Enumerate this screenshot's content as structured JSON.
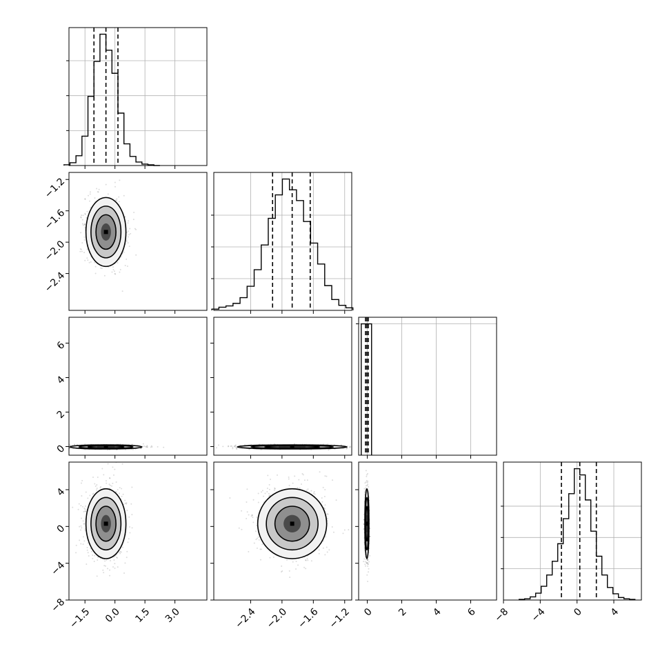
{
  "chart_data": {
    "type": "corner",
    "title": "",
    "n_params": 4,
    "params": [
      {
        "label": "",
        "range": [
          -2.3,
          4.6
        ],
        "ticks": [
          -1.5,
          0.0,
          1.5,
          3.0
        ],
        "tick_labels": [
          "−1.5",
          "0.0",
          "1.5",
          "3.0"
        ],
        "quantiles": [
          -1.05,
          -0.45,
          0.15
        ],
        "hist_x": [
          -2.4,
          -2.1,
          -1.8,
          -1.5,
          -1.2,
          -0.9,
          -0.6,
          -0.3,
          0.0,
          0.3,
          0.6,
          0.9,
          1.2,
          1.5,
          1.8,
          2.1
        ],
        "hist_counts": [
          1,
          4,
          14,
          42,
          99,
          149,
          188,
          165,
          132,
          75,
          31,
          13,
          5,
          2,
          1,
          0
        ]
      },
      {
        "label": "",
        "range": [
          -2.87,
          -1.11
        ],
        "ticks": [
          -2.4,
          -2.0,
          -1.6,
          -1.2
        ],
        "tick_labels": [
          "−2.4",
          "−2.0",
          "−1.6",
          "−1.2"
        ],
        "quantiles": [
          -2.12,
          -1.87,
          -1.64
        ],
        "hist_x": [
          -2.85,
          -2.76,
          -2.67,
          -2.58,
          -2.49,
          -2.4,
          -2.31,
          -2.22,
          -2.13,
          -2.04,
          -1.95,
          -1.86,
          -1.77,
          -1.68,
          -1.59,
          -1.5,
          -1.41,
          -1.32,
          -1.23,
          -1.14
        ],
        "hist_counts": [
          2,
          5,
          7,
          11,
          20,
          38,
          64,
          103,
          145,
          182,
          207,
          190,
          173,
          140,
          106,
          73,
          39,
          17,
          8,
          4
        ]
      },
      {
        "label": "",
        "range": [
          -0.5,
          7.5
        ],
        "ticks": [
          0,
          2,
          4,
          6
        ],
        "tick_labels": [
          "0",
          "2",
          "4",
          "6"
        ],
        "quantiles": [
          -0.1,
          -0.02,
          0.06
        ],
        "hist_x": [
          -0.25,
          -0.05,
          0.15
        ],
        "hist_counts": [
          200,
          200,
          200
        ]
      },
      {
        "label": "",
        "range": [
          -8,
          7
        ],
        "ticks": [
          -8,
          -4,
          0,
          4
        ],
        "tick_labels": [
          "−8",
          "−4",
          "0",
          "4"
        ],
        "quantiles": [
          -1.7,
          0.3,
          2.1
        ],
        "hist_x": [
          -6.0,
          -5.4,
          -4.8,
          -4.2,
          -3.6,
          -3.0,
          -2.4,
          -1.8,
          -1.2,
          -0.6,
          0.0,
          0.6,
          1.2,
          1.8,
          2.4,
          3.0,
          3.6,
          4.2,
          4.8,
          5.4,
          6.0
        ],
        "hist_counts": [
          1,
          2,
          5,
          11,
          22,
          40,
          62,
          90,
          130,
          170,
          210,
          200,
          160,
          110,
          70,
          40,
          20,
          10,
          4,
          2,
          1
        ]
      }
    ],
    "hist_ticks_y": [
      [
        50,
        100,
        150
      ],
      [
        50,
        100,
        150
      ],
      [
        200,
        400,
        600
      ],
      [
        50,
        100,
        150
      ]
    ],
    "pairs": [
      {
        "row": 1,
        "col": 0,
        "center": [
          -0.45,
          -1.87
        ],
        "sigma": [
          0.5,
          0.22
        ],
        "contour_levels": [
          0.5,
          1.0,
          1.5,
          2.0
        ]
      },
      {
        "row": 2,
        "col": 0,
        "center": [
          -0.45,
          -0.02
        ],
        "sigma": [
          0.9,
          0.06
        ],
        "contour_levels": [
          0.5,
          1.0,
          1.5,
          2.0
        ]
      },
      {
        "row": 2,
        "col": 1,
        "center": [
          -1.87,
          -0.02
        ],
        "sigma": [
          0.35,
          0.06
        ],
        "contour_levels": [
          0.5,
          1.0,
          1.5,
          2.0
        ]
      },
      {
        "row": 3,
        "col": 0,
        "center": [
          -0.45,
          0.3
        ],
        "sigma": [
          0.5,
          1.9
        ],
        "contour_levels": [
          0.5,
          1.0,
          1.5,
          2.0
        ]
      },
      {
        "row": 3,
        "col": 1,
        "center": [
          -1.87,
          0.3
        ],
        "sigma": [
          0.22,
          1.9
        ],
        "contour_levels": [
          0.5,
          1.0,
          1.5,
          2.0
        ]
      },
      {
        "row": 3,
        "col": 2,
        "center": [
          -0.02,
          0.3
        ],
        "sigma": [
          0.06,
          1.9
        ],
        "contour_levels": [
          0.5,
          1.0,
          1.5,
          2.0
        ]
      }
    ],
    "grid": true,
    "legend": "none"
  }
}
